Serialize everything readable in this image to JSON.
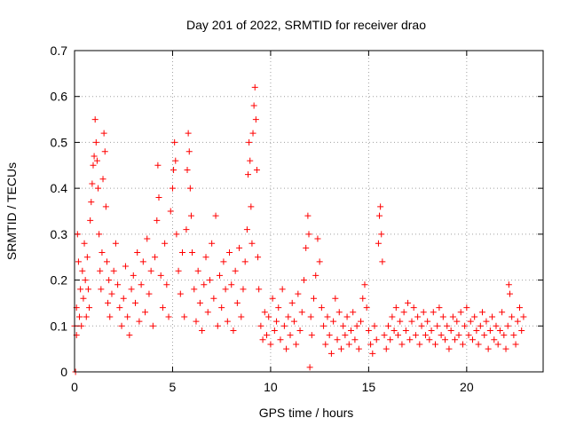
{
  "chart_data": {
    "type": "scatter",
    "title": "Day 201 of 2022, SRMTID for receiver drao",
    "xlabel": "GPS time / hours",
    "ylabel": "SRMTID / TECUs",
    "xlim": [
      0,
      23.9
    ],
    "ylim": [
      0,
      0.7
    ],
    "xticks": [
      0,
      5,
      10,
      15,
      20
    ],
    "yticks": [
      0,
      0.1,
      0.2,
      0.3,
      0.4,
      0.5,
      0.6,
      0.7
    ],
    "xtick_labels": [
      "0",
      "5",
      "10",
      "15",
      "20"
    ],
    "ytick_labels": [
      "0",
      "0.1",
      "0.2",
      "0.3",
      "0.4",
      "0.5",
      "0.6",
      "0.7"
    ],
    "grid": true,
    "marker": "+",
    "color": "#ff0000",
    "series": [
      {
        "name": "drao",
        "points": [
          [
            0.0,
            0.1
          ],
          [
            0.05,
            0.0
          ],
          [
            0.1,
            0.14
          ],
          [
            0.1,
            0.08
          ],
          [
            0.15,
            0.3
          ],
          [
            0.2,
            0.24
          ],
          [
            0.25,
            0.12
          ],
          [
            0.3,
            0.18
          ],
          [
            0.35,
            0.1
          ],
          [
            0.4,
            0.22
          ],
          [
            0.45,
            0.16
          ],
          [
            0.5,
            0.28
          ],
          [
            0.55,
            0.2
          ],
          [
            0.6,
            0.12
          ],
          [
            0.65,
            0.25
          ],
          [
            0.7,
            0.18
          ],
          [
            0.75,
            0.14
          ],
          [
            0.8,
            0.33
          ],
          [
            0.85,
            0.37
          ],
          [
            0.9,
            0.41
          ],
          [
            0.95,
            0.45
          ],
          [
            1.0,
            0.47
          ],
          [
            1.05,
            0.55
          ],
          [
            1.1,
            0.5
          ],
          [
            1.15,
            0.46
          ],
          [
            1.2,
            0.4
          ],
          [
            1.25,
            0.3
          ],
          [
            1.3,
            0.22
          ],
          [
            1.35,
            0.18
          ],
          [
            1.4,
            0.26
          ],
          [
            1.45,
            0.42
          ],
          [
            1.5,
            0.52
          ],
          [
            1.55,
            0.48
          ],
          [
            1.6,
            0.36
          ],
          [
            1.65,
            0.24
          ],
          [
            1.7,
            0.15
          ],
          [
            1.75,
            0.2
          ],
          [
            1.8,
            0.12
          ],
          [
            1.9,
            0.17
          ],
          [
            2.0,
            0.22
          ],
          [
            2.1,
            0.28
          ],
          [
            2.2,
            0.19
          ],
          [
            2.3,
            0.14
          ],
          [
            2.4,
            0.1
          ],
          [
            2.5,
            0.16
          ],
          [
            2.6,
            0.23
          ],
          [
            2.7,
            0.12
          ],
          [
            2.8,
            0.08
          ],
          [
            2.9,
            0.18
          ],
          [
            3.0,
            0.21
          ],
          [
            3.1,
            0.15
          ],
          [
            3.2,
            0.26
          ],
          [
            3.3,
            0.11
          ],
          [
            3.4,
            0.19
          ],
          [
            3.5,
            0.24
          ],
          [
            3.6,
            0.13
          ],
          [
            3.7,
            0.29
          ],
          [
            3.8,
            0.17
          ],
          [
            3.9,
            0.22
          ],
          [
            4.0,
            0.1
          ],
          [
            4.1,
            0.25
          ],
          [
            4.2,
            0.33
          ],
          [
            4.25,
            0.45
          ],
          [
            4.3,
            0.38
          ],
          [
            4.4,
            0.21
          ],
          [
            4.5,
            0.14
          ],
          [
            4.6,
            0.28
          ],
          [
            4.7,
            0.19
          ],
          [
            4.8,
            0.12
          ],
          [
            4.9,
            0.35
          ],
          [
            5.0,
            0.4
          ],
          [
            5.05,
            0.44
          ],
          [
            5.1,
            0.5
          ],
          [
            5.15,
            0.46
          ],
          [
            5.2,
            0.3
          ],
          [
            5.3,
            0.22
          ],
          [
            5.4,
            0.17
          ],
          [
            5.5,
            0.26
          ],
          [
            5.6,
            0.12
          ],
          [
            5.7,
            0.31
          ],
          [
            5.75,
            0.44
          ],
          [
            5.8,
            0.52
          ],
          [
            5.85,
            0.48
          ],
          [
            5.9,
            0.4
          ],
          [
            5.95,
            0.34
          ],
          [
            6.0,
            0.26
          ],
          [
            6.1,
            0.18
          ],
          [
            6.2,
            0.11
          ],
          [
            6.3,
            0.22
          ],
          [
            6.4,
            0.15
          ],
          [
            6.5,
            0.09
          ],
          [
            6.6,
            0.19
          ],
          [
            6.7,
            0.25
          ],
          [
            6.8,
            0.13
          ],
          [
            6.9,
            0.2
          ],
          [
            7.0,
            0.28
          ],
          [
            7.1,
            0.16
          ],
          [
            7.2,
            0.34
          ],
          [
            7.3,
            0.1
          ],
          [
            7.4,
            0.21
          ],
          [
            7.5,
            0.14
          ],
          [
            7.6,
            0.24
          ],
          [
            7.7,
            0.18
          ],
          [
            7.8,
            0.11
          ],
          [
            7.9,
            0.26
          ],
          [
            8.0,
            0.19
          ],
          [
            8.1,
            0.09
          ],
          [
            8.2,
            0.22
          ],
          [
            8.3,
            0.15
          ],
          [
            8.4,
            0.27
          ],
          [
            8.5,
            0.12
          ],
          [
            8.6,
            0.18
          ],
          [
            8.7,
            0.24
          ],
          [
            8.8,
            0.31
          ],
          [
            8.85,
            0.43
          ],
          [
            8.9,
            0.5
          ],
          [
            8.95,
            0.46
          ],
          [
            9.0,
            0.36
          ],
          [
            9.05,
            0.28
          ],
          [
            9.1,
            0.52
          ],
          [
            9.15,
            0.58
          ],
          [
            9.2,
            0.62
          ],
          [
            9.25,
            0.55
          ],
          [
            9.3,
            0.44
          ],
          [
            9.35,
            0.25
          ],
          [
            9.4,
            0.18
          ],
          [
            9.5,
            0.1
          ],
          [
            9.6,
            0.07
          ],
          [
            9.7,
            0.13
          ],
          [
            9.8,
            0.08
          ],
          [
            9.9,
            0.12
          ],
          [
            10.0,
            0.06
          ],
          [
            10.1,
            0.16
          ],
          [
            10.2,
            0.09
          ],
          [
            10.3,
            0.11
          ],
          [
            10.4,
            0.14
          ],
          [
            10.5,
            0.07
          ],
          [
            10.6,
            0.18
          ],
          [
            10.7,
            0.1
          ],
          [
            10.8,
            0.05
          ],
          [
            10.9,
            0.12
          ],
          [
            11.0,
            0.08
          ],
          [
            11.1,
            0.15
          ],
          [
            11.2,
            0.11
          ],
          [
            11.3,
            0.06
          ],
          [
            11.4,
            0.17
          ],
          [
            11.5,
            0.09
          ],
          [
            11.6,
            0.13
          ],
          [
            11.7,
            0.2
          ],
          [
            11.8,
            0.27
          ],
          [
            11.9,
            0.34
          ],
          [
            11.95,
            0.3
          ],
          [
            12.0,
            0.01
          ],
          [
            12.05,
            0.12
          ],
          [
            12.1,
            0.08
          ],
          [
            12.2,
            0.16
          ],
          [
            12.3,
            0.21
          ],
          [
            12.4,
            0.29
          ],
          [
            12.5,
            0.24
          ],
          [
            12.6,
            0.14
          ],
          [
            12.7,
            0.1
          ],
          [
            12.8,
            0.06
          ],
          [
            12.9,
            0.12
          ],
          [
            13.0,
            0.08
          ],
          [
            13.1,
            0.04
          ],
          [
            13.2,
            0.11
          ],
          [
            13.3,
            0.16
          ],
          [
            13.4,
            0.07
          ],
          [
            13.5,
            0.13
          ],
          [
            13.6,
            0.05
          ],
          [
            13.7,
            0.1
          ],
          [
            13.8,
            0.08
          ],
          [
            13.9,
            0.12
          ],
          [
            14.0,
            0.06
          ],
          [
            14.1,
            0.09
          ],
          [
            14.2,
            0.13
          ],
          [
            14.3,
            0.07
          ],
          [
            14.4,
            0.1
          ],
          [
            14.5,
            0.05
          ],
          [
            14.6,
            0.11
          ],
          [
            14.7,
            0.16
          ],
          [
            14.8,
            0.19
          ],
          [
            14.9,
            0.14
          ],
          [
            15.0,
            0.09
          ],
          [
            15.1,
            0.06
          ],
          [
            15.2,
            0.04
          ],
          [
            15.3,
            0.1
          ],
          [
            15.4,
            0.07
          ],
          [
            15.5,
            0.28
          ],
          [
            15.55,
            0.34
          ],
          [
            15.6,
            0.36
          ],
          [
            15.65,
            0.3
          ],
          [
            15.7,
            0.24
          ],
          [
            15.8,
            0.08
          ],
          [
            15.9,
            0.05
          ],
          [
            16.0,
            0.1
          ],
          [
            16.1,
            0.07
          ],
          [
            16.2,
            0.12
          ],
          [
            16.3,
            0.09
          ],
          [
            16.4,
            0.14
          ],
          [
            16.5,
            0.08
          ],
          [
            16.6,
            0.11
          ],
          [
            16.7,
            0.06
          ],
          [
            16.8,
            0.13
          ],
          [
            16.9,
            0.09
          ],
          [
            17.0,
            0.15
          ],
          [
            17.1,
            0.07
          ],
          [
            17.2,
            0.11
          ],
          [
            17.3,
            0.14
          ],
          [
            17.4,
            0.08
          ],
          [
            17.5,
            0.12
          ],
          [
            17.6,
            0.06
          ],
          [
            17.7,
            0.1
          ],
          [
            17.8,
            0.13
          ],
          [
            17.9,
            0.08
          ],
          [
            18.0,
            0.11
          ],
          [
            18.1,
            0.07
          ],
          [
            18.2,
            0.09
          ],
          [
            18.3,
            0.13
          ],
          [
            18.4,
            0.06
          ],
          [
            18.5,
            0.1
          ],
          [
            18.6,
            0.14
          ],
          [
            18.7,
            0.08
          ],
          [
            18.8,
            0.12
          ],
          [
            18.9,
            0.07
          ],
          [
            19.0,
            0.1
          ],
          [
            19.1,
            0.05
          ],
          [
            19.2,
            0.09
          ],
          [
            19.3,
            0.12
          ],
          [
            19.4,
            0.07
          ],
          [
            19.5,
            0.11
          ],
          [
            19.6,
            0.08
          ],
          [
            19.7,
            0.13
          ],
          [
            19.8,
            0.06
          ],
          [
            19.9,
            0.1
          ],
          [
            20.0,
            0.14
          ],
          [
            20.1,
            0.08
          ],
          [
            20.2,
            0.11
          ],
          [
            20.3,
            0.07
          ],
          [
            20.4,
            0.12
          ],
          [
            20.5,
            0.09
          ],
          [
            20.6,
            0.06
          ],
          [
            20.7,
            0.1
          ],
          [
            20.8,
            0.13
          ],
          [
            20.9,
            0.08
          ],
          [
            21.0,
            0.11
          ],
          [
            21.1,
            0.05
          ],
          [
            21.2,
            0.09
          ],
          [
            21.3,
            0.12
          ],
          [
            21.4,
            0.07
          ],
          [
            21.5,
            0.1
          ],
          [
            21.6,
            0.06
          ],
          [
            21.7,
            0.09
          ],
          [
            21.8,
            0.13
          ],
          [
            21.9,
            0.08
          ],
          [
            22.0,
            0.05
          ],
          [
            22.1,
            0.1
          ],
          [
            22.15,
            0.19
          ],
          [
            22.2,
            0.17
          ],
          [
            22.3,
            0.12
          ],
          [
            22.4,
            0.08
          ],
          [
            22.5,
            0.06
          ],
          [
            22.6,
            0.11
          ],
          [
            22.7,
            0.14
          ],
          [
            22.8,
            0.09
          ],
          [
            22.9,
            0.12
          ]
        ]
      }
    ]
  }
}
